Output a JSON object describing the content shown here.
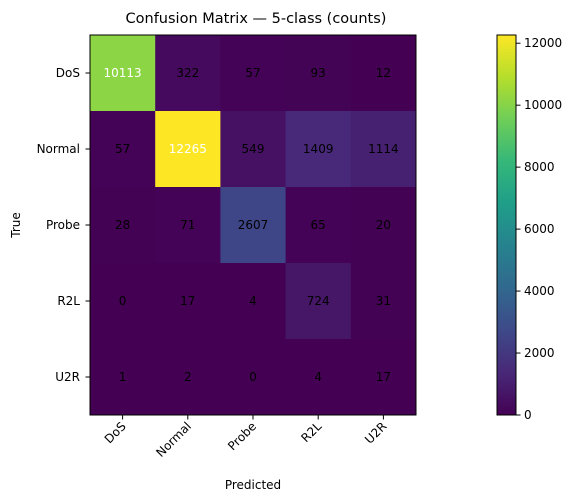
{
  "chart_data": {
    "type": "heatmap",
    "title": "Confusion Matrix — 5-class (counts)",
    "xlabel": "Predicted",
    "ylabel": "True",
    "x_categories": [
      "DoS",
      "Normal",
      "Probe",
      "R2L",
      "U2R"
    ],
    "y_categories": [
      "DoS",
      "Normal",
      "Probe",
      "R2L",
      "U2R"
    ],
    "values": [
      [
        10113,
        322,
        57,
        93,
        12
      ],
      [
        57,
        12265,
        549,
        1409,
        1114
      ],
      [
        28,
        71,
        2607,
        65,
        20
      ],
      [
        0,
        17,
        4,
        724,
        31
      ],
      [
        1,
        2,
        0,
        4,
        17
      ]
    ],
    "colormap": "viridis",
    "colorbar": {
      "range": [
        0,
        12265
      ],
      "ticks": [
        0,
        2000,
        4000,
        6000,
        8000,
        10000,
        12000
      ]
    },
    "text_colors": {
      "dark": "#000000",
      "light": "#ffffff"
    }
  }
}
